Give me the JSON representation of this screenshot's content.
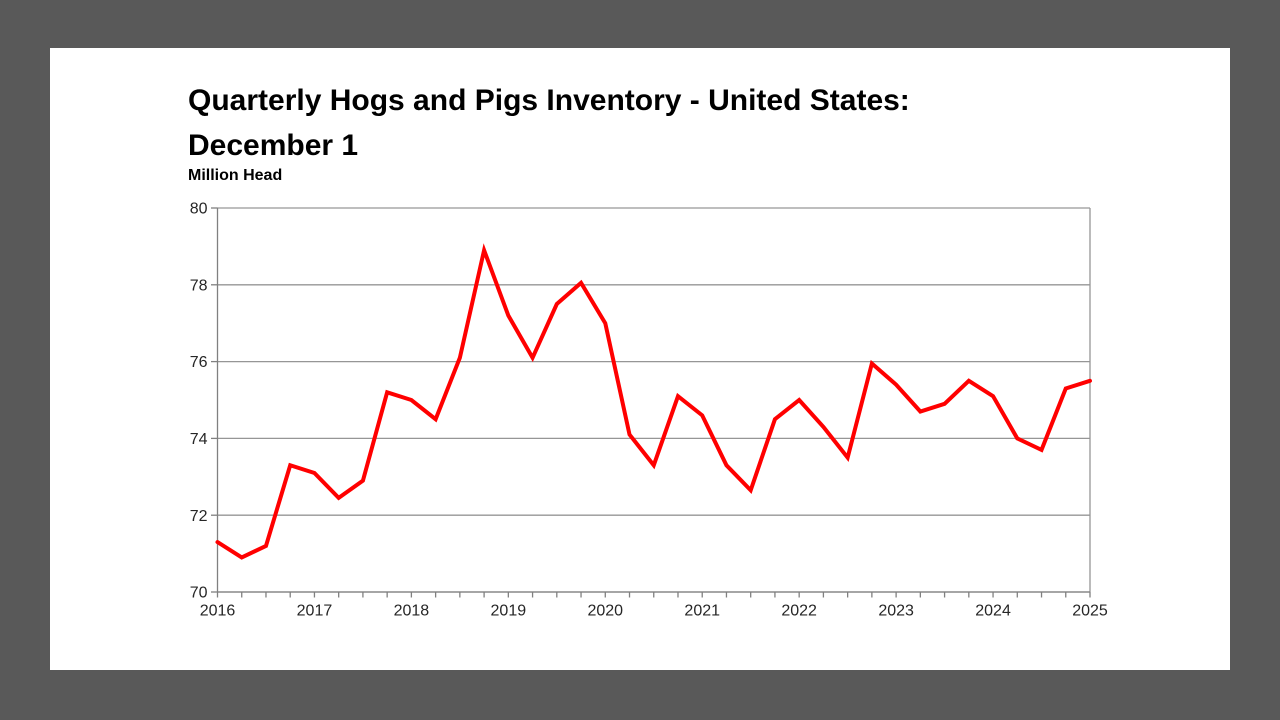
{
  "slide": {
    "background_color": "#595959",
    "card_color": "#ffffff"
  },
  "chart": {
    "title": "Quarterly Hogs and Pigs Inventory - United States:\nDecember 1",
    "y_axis_title": "Million Head"
  },
  "colors": {
    "line": "#ff0000",
    "gridline": "#969696",
    "axis": "#808080",
    "tick_text": "#262626"
  },
  "chart_data": {
    "type": "line",
    "title": "Quarterly Hogs and Pigs Inventory - United States: December 1",
    "ylabel": "Million Head",
    "xlabel": "",
    "ylim": [
      70,
      80
    ],
    "yticks": [
      70,
      72,
      74,
      76,
      78,
      80
    ],
    "x_tick_labels": [
      "2016",
      "2017",
      "2018",
      "2019",
      "2020",
      "2021",
      "2022",
      "2023",
      "2024",
      "2025"
    ],
    "x_range": [
      2016,
      2025
    ],
    "points_per_year": 4,
    "grid": "horizontal-only",
    "legend": "none",
    "line_color": "#ff0000",
    "x": [
      2016.0,
      2016.25,
      2016.5,
      2016.75,
      2017.0,
      2017.25,
      2017.5,
      2017.75,
      2018.0,
      2018.25,
      2018.5,
      2018.75,
      2019.0,
      2019.25,
      2019.5,
      2019.75,
      2020.0,
      2020.25,
      2020.5,
      2020.75,
      2021.0,
      2021.25,
      2021.5,
      2021.75,
      2022.0,
      2022.25,
      2022.5,
      2022.75,
      2023.0,
      2023.25,
      2023.5,
      2023.75,
      2024.0,
      2024.25,
      2024.5,
      2024.75,
      2025.0
    ],
    "values": [
      71.3,
      70.9,
      71.2,
      73.3,
      73.1,
      72.45,
      72.9,
      75.2,
      75.0,
      74.5,
      76.1,
      78.9,
      77.2,
      76.1,
      77.5,
      78.05,
      77.0,
      74.1,
      73.3,
      75.1,
      74.6,
      73.3,
      72.65,
      74.5,
      75.0,
      74.3,
      73.5,
      75.95,
      75.4,
      74.7,
      74.9,
      75.5,
      75.1,
      74.0,
      73.7,
      75.3,
      75.5
    ]
  }
}
